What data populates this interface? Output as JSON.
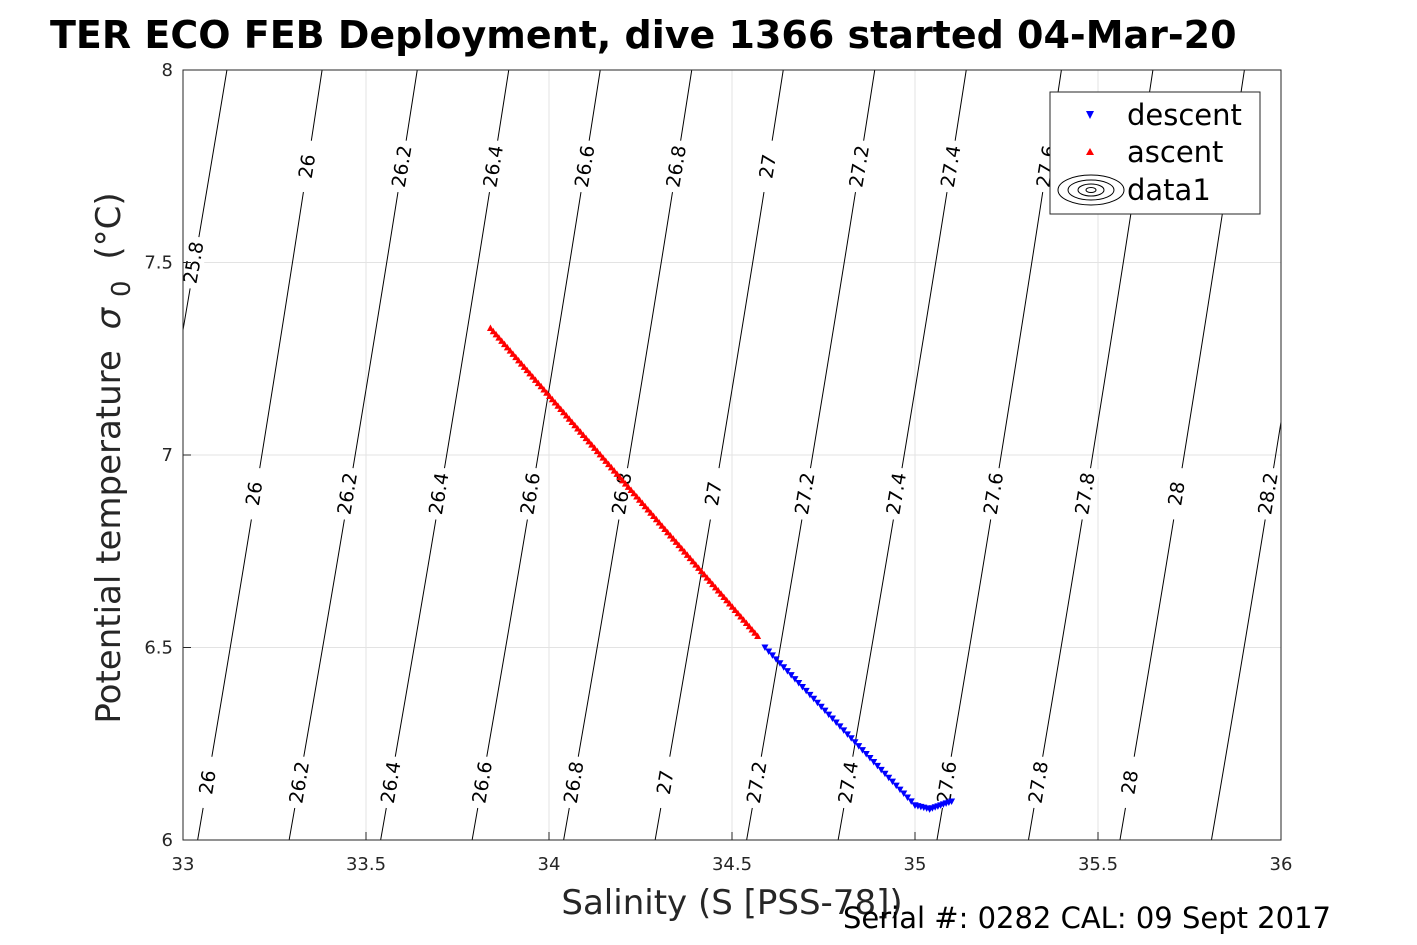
{
  "chart_data": {
    "type": "scatter",
    "title": "TER ECO FEB Deployment, dive 1366 started 04-Mar-20",
    "xlabel": "Salinity (S [PSS-78])",
    "ylabel": "Potential temperature",
    "ylabel_symbol": "σ",
    "ylabel_subscript": "0",
    "ylabel_unit": "(°C)",
    "xlim": [
      33,
      36
    ],
    "ylim": [
      6,
      8
    ],
    "xticks": [
      "33",
      "33.5",
      "34",
      "34.5",
      "35",
      "35.5",
      "36"
    ],
    "yticks": [
      "6",
      "6.5",
      "7",
      "7.5",
      "8"
    ],
    "grid": true,
    "legend_position": "top-right",
    "footer": "Serial #: 0282  CAL: 09 Sept 2017",
    "contours": {
      "name": "data1",
      "color": "#000000",
      "levels": [
        {
          "sigma": "25.8",
          "s_at_y6": 32.75,
          "s_at_y8": 33.12
        },
        {
          "sigma": "26",
          "s_at_y6": 33.04,
          "s_at_y8": 33.38
        },
        {
          "sigma": "26.2",
          "s_at_y6": 33.29,
          "s_at_y8": 33.64
        },
        {
          "sigma": "26.4",
          "s_at_y6": 33.54,
          "s_at_y8": 33.89
        },
        {
          "sigma": "26.6",
          "s_at_y6": 33.79,
          "s_at_y8": 34.14
        },
        {
          "sigma": "26.8",
          "s_at_y6": 34.04,
          "s_at_y8": 34.39
        },
        {
          "sigma": "27",
          "s_at_y6": 34.29,
          "s_at_y8": 34.64
        },
        {
          "sigma": "27.2",
          "s_at_y6": 34.54,
          "s_at_y8": 34.89
        },
        {
          "sigma": "27.4",
          "s_at_y6": 34.79,
          "s_at_y8": 35.14
        },
        {
          "sigma": "27.6",
          "s_at_y6": 35.06,
          "s_at_y8": 35.4
        },
        {
          "sigma": "27.8",
          "s_at_y6": 35.31,
          "s_at_y8": 35.65
        },
        {
          "sigma": "28",
          "s_at_y6": 35.56,
          "s_at_y8": 35.9
        },
        {
          "sigma": "28.2",
          "s_at_y6": 35.81,
          "s_at_y8": 36.15
        }
      ],
      "label_rows": [
        {
          "at_y": 7.75,
          "levels": [
            "26",
            "26.2",
            "26.4",
            "26.6",
            "26.8",
            "27",
            "27.2",
            "27.4",
            "27.6"
          ]
        },
        {
          "at_y": 7.5,
          "levels": [
            "25.8"
          ]
        },
        {
          "at_y": 6.9,
          "levels": [
            "26",
            "26.2",
            "26.4",
            "26.6",
            "26.8",
            "27",
            "27.2",
            "27.4",
            "27.6",
            "27.8",
            "28",
            "28.2"
          ]
        },
        {
          "at_y": 6.15,
          "levels": [
            "26",
            "26.2",
            "26.4",
            "26.6",
            "26.8",
            "27",
            "27.2",
            "27.4",
            "27.6",
            "27.8",
            "28"
          ]
        }
      ]
    },
    "series": [
      {
        "name": "descent",
        "color": "#0000ff",
        "marker": "triangle-down",
        "segments": [
          {
            "from": [
              34.59,
              6.5
            ],
            "to": [
              35.0,
              6.09
            ],
            "count": 40
          },
          {
            "from": [
              35.0,
              6.09
            ],
            "to": [
              35.04,
              6.08
            ],
            "count": 5
          },
          {
            "from": [
              35.04,
              6.08
            ],
            "to": [
              35.1,
              6.1
            ],
            "count": 8
          }
        ]
      },
      {
        "name": "ascent",
        "color": "#ff0000",
        "marker": "triangle-up",
        "segments": [
          {
            "from": [
              33.84,
              7.33
            ],
            "to": [
              34.57,
              6.53
            ],
            "count": 95
          }
        ]
      }
    ]
  }
}
